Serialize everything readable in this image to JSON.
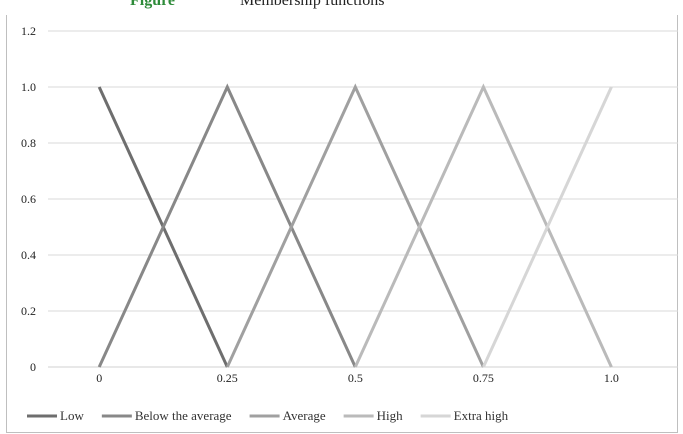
{
  "caption": {
    "label": "Figure",
    "text": "Membership functions"
  },
  "chart_data": {
    "type": "line",
    "x_ticks": [
      0,
      0.25,
      0.5,
      0.75,
      1.0
    ],
    "x_tick_labels": [
      "0",
      "0.25",
      "0.5",
      "0.75",
      "1.0"
    ],
    "y_ticks": [
      0,
      0.2,
      0.4,
      0.6,
      0.8,
      1.0,
      1.2
    ],
    "y_tick_labels": [
      "0",
      "0.2",
      "0.4",
      "0.6",
      "0.8",
      "1.0",
      "1.2"
    ],
    "xlim": [
      -0.1,
      1.13
    ],
    "ylim": [
      0,
      1.2
    ],
    "grid": "horizontal",
    "legend_position": "bottom",
    "series": [
      {
        "name": "Low",
        "color": "#6e6e6e",
        "points": [
          [
            0,
            1.0
          ],
          [
            0.25,
            0
          ]
        ]
      },
      {
        "name": "Below the average",
        "color": "#888888",
        "points": [
          [
            0,
            0
          ],
          [
            0.25,
            1.0
          ],
          [
            0.5,
            0
          ]
        ]
      },
      {
        "name": "Average",
        "color": "#a0a0a0",
        "points": [
          [
            0.25,
            0
          ],
          [
            0.5,
            1.0
          ],
          [
            0.75,
            0
          ]
        ]
      },
      {
        "name": "High",
        "color": "#bababa",
        "points": [
          [
            0.5,
            0
          ],
          [
            0.75,
            1.0
          ],
          [
            1.0,
            0
          ]
        ]
      },
      {
        "name": "Extra high",
        "color": "#d6d6d6",
        "points": [
          [
            0.75,
            0
          ],
          [
            1.0,
            1.0
          ]
        ]
      }
    ]
  }
}
